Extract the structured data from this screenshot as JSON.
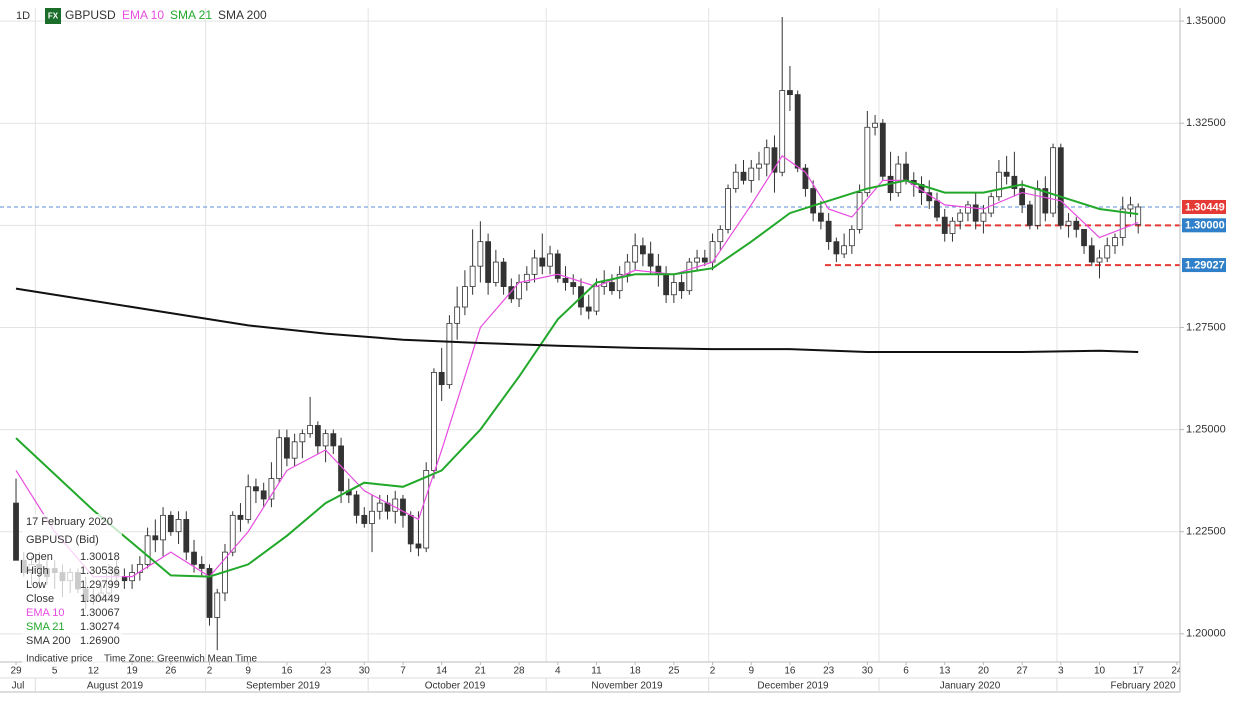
{
  "chart_data": {
    "type": "candlestick",
    "interval": "1D",
    "badge": "FX",
    "symbol": "GBPUSD",
    "open": [
      1.232,
      1.218,
      1.215,
      1.217,
      1.216,
      1.216,
      1.215,
      1.213,
      1.215,
      1.211,
      1.208,
      1.209,
      1.21,
      1.215,
      1.214,
      1.213,
      1.215,
      1.217,
      1.224,
      1.223,
      1.229,
      1.225,
      1.228,
      1.22,
      1.217,
      1.216,
      1.204,
      1.21,
      1.22,
      1.229,
      1.228,
      1.236,
      1.235,
      1.233,
      1.238,
      1.248,
      1.243,
      1.247,
      1.249,
      1.251,
      1.246,
      1.249,
      1.246,
      1.235,
      1.234,
      1.229,
      1.227,
      1.23,
      1.232,
      1.23,
      1.233,
      1.229,
      1.222,
      1.221,
      1.24,
      1.264,
      1.261,
      1.276,
      1.28,
      1.285,
      1.29,
      1.296,
      1.286,
      1.291,
      1.285,
      1.282,
      1.286,
      1.288,
      1.292,
      1.29,
      1.293,
      1.287,
      1.286,
      1.285,
      1.28,
      1.279,
      1.285,
      1.286,
      1.284,
      1.288,
      1.291,
      1.295,
      1.293,
      1.29,
      1.288,
      1.283,
      1.286,
      1.284,
      1.291,
      1.292,
      1.291,
      1.296,
      1.299,
      1.309,
      1.313,
      1.311,
      1.314,
      1.315,
      1.319,
      1.313,
      1.333,
      1.332,
      1.314,
      1.309,
      1.303,
      1.301,
      1.296,
      1.293,
      1.295,
      1.299,
      1.308,
      1.324,
      1.325,
      1.312,
      1.308,
      1.315,
      1.311,
      1.31,
      1.308,
      1.306,
      1.302,
      1.298,
      1.301,
      1.303,
      1.305,
      1.301,
      1.303,
      1.307,
      1.313,
      1.312,
      1.309,
      1.305,
      1.3,
      1.309,
      1.303,
      1.319,
      1.3,
      1.301,
      1.299,
      1.295,
      1.291,
      1.292,
      1.295,
      1.297,
      1.304,
      1.30018
    ],
    "high": [
      1.238,
      1.22,
      1.219,
      1.22,
      1.218,
      1.218,
      1.217,
      1.216,
      1.216,
      1.214,
      1.211,
      1.212,
      1.217,
      1.218,
      1.216,
      1.217,
      1.219,
      1.226,
      1.228,
      1.231,
      1.23,
      1.23,
      1.23,
      1.223,
      1.219,
      1.217,
      1.211,
      1.222,
      1.23,
      1.232,
      1.239,
      1.238,
      1.237,
      1.242,
      1.25,
      1.25,
      1.249,
      1.25,
      1.258,
      1.252,
      1.25,
      1.25,
      1.248,
      1.238,
      1.235,
      1.231,
      1.234,
      1.234,
      1.234,
      1.235,
      1.234,
      1.23,
      1.23,
      1.242,
      1.265,
      1.27,
      1.278,
      1.285,
      1.289,
      1.299,
      1.301,
      1.298,
      1.294,
      1.292,
      1.287,
      1.288,
      1.29,
      1.294,
      1.298,
      1.295,
      1.294,
      1.29,
      1.288,
      1.287,
      1.283,
      1.287,
      1.289,
      1.288,
      1.29,
      1.293,
      1.298,
      1.297,
      1.296,
      1.293,
      1.29,
      1.288,
      1.288,
      1.292,
      1.294,
      1.294,
      1.298,
      1.3,
      1.31,
      1.315,
      1.316,
      1.316,
      1.318,
      1.321,
      1.322,
      1.351,
      1.339,
      1.333,
      1.315,
      1.311,
      1.306,
      1.303,
      1.297,
      1.298,
      1.3,
      1.31,
      1.328,
      1.327,
      1.326,
      1.318,
      1.317,
      1.318,
      1.313,
      1.312,
      1.311,
      1.308,
      1.304,
      1.302,
      1.304,
      1.306,
      1.308,
      1.305,
      1.308,
      1.316,
      1.317,
      1.318,
      1.311,
      1.306,
      1.311,
      1.312,
      1.32,
      1.32,
      1.303,
      1.302,
      1.299,
      1.297,
      1.294,
      1.297,
      1.298,
      1.307,
      1.307,
      1.30536
    ],
    "low": [
      1.218,
      1.214,
      1.212,
      1.211,
      1.212,
      1.211,
      1.209,
      1.21,
      1.21,
      1.206,
      1.207,
      1.208,
      1.209,
      1.212,
      1.211,
      1.211,
      1.213,
      1.216,
      1.22,
      1.219,
      1.224,
      1.222,
      1.218,
      1.215,
      1.214,
      1.202,
      1.196,
      1.208,
      1.219,
      1.225,
      1.227,
      1.232,
      1.231,
      1.231,
      1.237,
      1.241,
      1.241,
      1.243,
      1.248,
      1.244,
      1.242,
      1.244,
      1.232,
      1.232,
      1.227,
      1.226,
      1.22,
      1.228,
      1.228,
      1.227,
      1.226,
      1.22,
      1.219,
      1.22,
      1.238,
      1.257,
      1.26,
      1.272,
      1.278,
      1.283,
      1.286,
      1.283,
      1.285,
      1.283,
      1.281,
      1.28,
      1.284,
      1.286,
      1.288,
      1.288,
      1.286,
      1.284,
      1.283,
      1.278,
      1.277,
      1.278,
      1.283,
      1.283,
      1.282,
      1.286,
      1.289,
      1.29,
      1.288,
      1.285,
      1.281,
      1.281,
      1.282,
      1.283,
      1.289,
      1.29,
      1.289,
      1.294,
      1.298,
      1.308,
      1.31,
      1.308,
      1.311,
      1.312,
      1.308,
      1.312,
      1.328,
      1.313,
      1.307,
      1.301,
      1.299,
      1.294,
      1.291,
      1.292,
      1.293,
      1.298,
      1.307,
      1.322,
      1.311,
      1.306,
      1.307,
      1.31,
      1.307,
      1.305,
      1.304,
      1.301,
      1.296,
      1.296,
      1.299,
      1.301,
      1.299,
      1.298,
      1.302,
      1.306,
      1.31,
      1.307,
      1.303,
      1.299,
      1.299,
      1.301,
      1.302,
      1.299,
      1.297,
      1.297,
      1.293,
      1.29,
      1.287,
      1.291,
      1.293,
      1.295,
      1.302,
      1.29799
    ],
    "close": [
      1.218,
      1.215,
      1.217,
      1.216,
      1.214,
      1.215,
      1.213,
      1.215,
      1.211,
      1.208,
      1.209,
      1.21,
      1.215,
      1.214,
      1.213,
      1.215,
      1.217,
      1.224,
      1.223,
      1.229,
      1.225,
      1.228,
      1.22,
      1.217,
      1.216,
      1.204,
      1.21,
      1.22,
      1.229,
      1.228,
      1.236,
      1.235,
      1.233,
      1.238,
      1.248,
      1.243,
      1.247,
      1.249,
      1.251,
      1.246,
      1.249,
      1.246,
      1.235,
      1.234,
      1.229,
      1.227,
      1.23,
      1.232,
      1.23,
      1.233,
      1.229,
      1.222,
      1.221,
      1.24,
      1.264,
      1.261,
      1.276,
      1.28,
      1.285,
      1.29,
      1.296,
      1.286,
      1.291,
      1.285,
      1.282,
      1.286,
      1.288,
      1.292,
      1.29,
      1.293,
      1.287,
      1.286,
      1.285,
      1.28,
      1.279,
      1.285,
      1.286,
      1.284,
      1.288,
      1.291,
      1.295,
      1.293,
      1.29,
      1.288,
      1.283,
      1.286,
      1.284,
      1.291,
      1.292,
      1.291,
      1.296,
      1.299,
      1.309,
      1.313,
      1.311,
      1.314,
      1.315,
      1.319,
      1.313,
      1.333,
      1.332,
      1.314,
      1.309,
      1.303,
      1.301,
      1.296,
      1.293,
      1.295,
      1.299,
      1.308,
      1.324,
      1.325,
      1.312,
      1.308,
      1.315,
      1.311,
      1.31,
      1.308,
      1.306,
      1.302,
      1.298,
      1.301,
      1.303,
      1.305,
      1.301,
      1.303,
      1.307,
      1.313,
      1.312,
      1.309,
      1.305,
      1.3,
      1.309,
      1.303,
      1.319,
      1.3,
      1.301,
      1.299,
      1.295,
      1.291,
      1.292,
      1.295,
      1.297,
      1.304,
      1.305,
      1.30449
    ],
    "up_color": "#ffffff",
    "down_color": "#333333",
    "series": [
      {
        "name": "EMA 10",
        "color": "#e84de0",
        "x": [
          0,
          5,
          10,
          15,
          20,
          25,
          30,
          35,
          40,
          45,
          50,
          52,
          55,
          60,
          65,
          70,
          75,
          80,
          85,
          90,
          95,
          99,
          102,
          105,
          108,
          112,
          115,
          120,
          125,
          130,
          135,
          140,
          145
        ],
        "values": [
          1.24,
          1.225,
          1.214,
          1.214,
          1.22,
          1.214,
          1.225,
          1.24,
          1.245,
          1.235,
          1.23,
          1.228,
          1.245,
          1.275,
          1.286,
          1.288,
          1.285,
          1.289,
          1.288,
          1.291,
          1.305,
          1.317,
          1.313,
          1.304,
          1.302,
          1.311,
          1.311,
          1.305,
          1.304,
          1.308,
          1.306,
          1.297,
          1.30067
        ]
      },
      {
        "name": "SMA 21",
        "color": "#22a82a",
        "x": [
          0,
          10,
          20,
          25,
          30,
          35,
          40,
          45,
          50,
          55,
          60,
          65,
          70,
          75,
          80,
          85,
          90,
          95,
          100,
          105,
          110,
          115,
          120,
          125,
          130,
          135,
          140,
          145
        ],
        "values": [
          1.2479,
          1.2302,
          1.2143,
          1.214,
          1.217,
          1.224,
          1.232,
          1.237,
          1.236,
          1.24,
          1.25,
          1.263,
          1.277,
          1.286,
          1.288,
          1.288,
          1.2895,
          1.296,
          1.303,
          1.306,
          1.309,
          1.311,
          1.308,
          1.308,
          1.31,
          1.307,
          1.304,
          1.30274
        ]
      },
      {
        "name": "SMA 200",
        "color": "#111111",
        "x": [
          0,
          10,
          20,
          30,
          40,
          50,
          60,
          70,
          80,
          90,
          100,
          110,
          120,
          130,
          140,
          145
        ],
        "values": [
          1.2845,
          1.2815,
          1.2785,
          1.2755,
          1.2735,
          1.272,
          1.2712,
          1.2705,
          1.27,
          1.2697,
          1.2697,
          1.269,
          1.269,
          1.269,
          1.2693,
          1.269
        ]
      }
    ],
    "ylim": [
      1.1931,
      1.3532
    ],
    "yticks": [
      {
        "value": 1.2,
        "label": "1.20000"
      },
      {
        "value": 1.225,
        "label": "1.22500"
      },
      {
        "value": 1.25,
        "label": "1.25000"
      },
      {
        "value": 1.275,
        "label": "1.27500"
      },
      {
        "value": 1.3,
        "label": "1.30000"
      },
      {
        "value": 1.325,
        "label": "1.32500"
      },
      {
        "value": 1.35,
        "label": "1.35000"
      }
    ],
    "xlim": [
      -2.07,
      150.4
    ],
    "xticks": [
      {
        "value": 0,
        "label": "29"
      },
      {
        "value": 5,
        "label": "5"
      },
      {
        "value": 10,
        "label": "12"
      },
      {
        "value": 15,
        "label": "19"
      },
      {
        "value": 20,
        "label": "26"
      },
      {
        "value": 25,
        "label": "2"
      },
      {
        "value": 30,
        "label": "9"
      },
      {
        "value": 35,
        "label": "16"
      },
      {
        "value": 40,
        "label": "23"
      },
      {
        "value": 45,
        "label": "30"
      },
      {
        "value": 50,
        "label": "7"
      },
      {
        "value": 55,
        "label": "14"
      },
      {
        "value": 60,
        "label": "21"
      },
      {
        "value": 65,
        "label": "28"
      },
      {
        "value": 70,
        "label": "4"
      },
      {
        "value": 75,
        "label": "11"
      },
      {
        "value": 80,
        "label": "18"
      },
      {
        "value": 85,
        "label": "25"
      },
      {
        "value": 90,
        "label": "2"
      },
      {
        "value": 95,
        "label": "9"
      },
      {
        "value": 100,
        "label": "16"
      },
      {
        "value": 105,
        "label": "23"
      },
      {
        "value": 110,
        "label": "30"
      },
      {
        "value": 115,
        "label": "6"
      },
      {
        "value": 120,
        "label": "13"
      },
      {
        "value": 125,
        "label": "20"
      },
      {
        "value": 130,
        "label": "27"
      },
      {
        "value": 135,
        "label": "3"
      },
      {
        "value": 140,
        "label": "10"
      },
      {
        "value": 145,
        "label": "17"
      },
      {
        "value": 150,
        "label": "24"
      }
    ],
    "months": [
      "Jul",
      "August 2019",
      "September 2019",
      "October 2019",
      "November 2019",
      "December 2019",
      "January 2020",
      "February 2020"
    ],
    "price_lines": [
      {
        "value": 1.30449,
        "label": "1.30449",
        "color": "#e53935",
        "line_color": "#5b8fd6"
      },
      {
        "value": 1.3,
        "label": "1.30000",
        "color": "#2f80c8",
        "line_color": "#e53935"
      },
      {
        "value": 1.29027,
        "label": "1.29027",
        "color": "#2f80c8",
        "line_color": "#e53935"
      }
    ],
    "grid": true,
    "info": {
      "date": "17 February 2020",
      "heading": "GBPUSD (Bid)",
      "rows": [
        {
          "label": "Open",
          "value": "1.30018"
        },
        {
          "label": "High",
          "value": "1.30536"
        },
        {
          "label": "Low",
          "value": "1.29799"
        },
        {
          "label": "Close",
          "value": "1.30449"
        },
        {
          "label": "EMA 10",
          "value": "1.30067"
        },
        {
          "label": "SMA 21",
          "value": "1.30274"
        },
        {
          "label": "SMA 200",
          "value": "1.26900"
        }
      ],
      "footer_left": "Indicative price",
      "footer_right": "Time Zone: Greenwich Mean Time"
    }
  }
}
